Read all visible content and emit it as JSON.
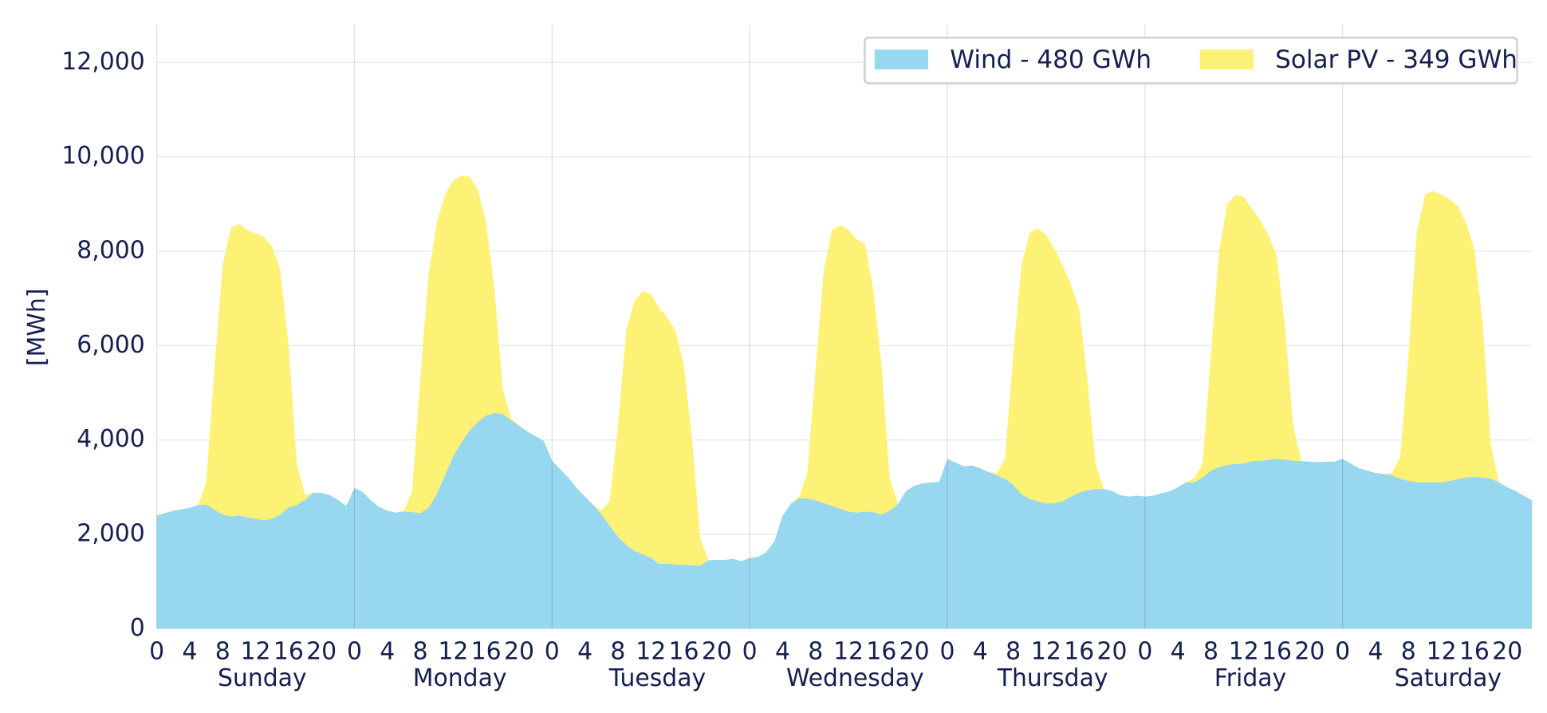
{
  "chart_data": {
    "type": "area",
    "stacked": true,
    "ylabel": "[MWh]",
    "ylim": [
      0,
      12800
    ],
    "yticks": [
      0,
      {
        "value": 2000,
        "label": "2,000"
      },
      {
        "value": 4000,
        "label": "4,000"
      },
      {
        "value": 6000,
        "label": "6,000"
      },
      {
        "value": 8000,
        "label": "8,000"
      },
      {
        "value": 10000,
        "label": "10,000"
      },
      {
        "value": 12000,
        "label": "12,000"
      }
    ],
    "xlim": [
      0,
      167
    ],
    "xticks": [
      {
        "value": 0,
        "label": "0"
      },
      {
        "value": 4,
        "label": "4"
      },
      {
        "value": 8,
        "label": "8"
      },
      {
        "value": 12,
        "label": "12"
      },
      {
        "value": 16,
        "label": "16"
      },
      {
        "value": 20,
        "label": "20"
      },
      {
        "value": 24,
        "label": "0"
      },
      {
        "value": 28,
        "label": "4"
      },
      {
        "value": 32,
        "label": "8"
      },
      {
        "value": 36,
        "label": "12"
      },
      {
        "value": 40,
        "label": "16"
      },
      {
        "value": 44,
        "label": "20"
      },
      {
        "value": 48,
        "label": "0"
      },
      {
        "value": 52,
        "label": "4"
      },
      {
        "value": 56,
        "label": "8"
      },
      {
        "value": 60,
        "label": "12"
      },
      {
        "value": 64,
        "label": "16"
      },
      {
        "value": 68,
        "label": "20"
      },
      {
        "value": 72,
        "label": "0"
      },
      {
        "value": 76,
        "label": "4"
      },
      {
        "value": 80,
        "label": "8"
      },
      {
        "value": 84,
        "label": "12"
      },
      {
        "value": 88,
        "label": "16"
      },
      {
        "value": 92,
        "label": "20"
      },
      {
        "value": 96,
        "label": "0"
      },
      {
        "value": 100,
        "label": "4"
      },
      {
        "value": 104,
        "label": "8"
      },
      {
        "value": 108,
        "label": "12"
      },
      {
        "value": 112,
        "label": "16"
      },
      {
        "value": 116,
        "label": "20"
      },
      {
        "value": 120,
        "label": "0"
      },
      {
        "value": 124,
        "label": "4"
      },
      {
        "value": 128,
        "label": "8"
      },
      {
        "value": 132,
        "label": "12"
      },
      {
        "value": 136,
        "label": "16"
      },
      {
        "value": 140,
        "label": "20"
      },
      {
        "value": 144,
        "label": "0"
      },
      {
        "value": 148,
        "label": "4"
      },
      {
        "value": 152,
        "label": "8"
      },
      {
        "value": 156,
        "label": "12"
      },
      {
        "value": 160,
        "label": "16"
      },
      {
        "value": 164,
        "label": "20"
      }
    ],
    "days": [
      "Sunday",
      "Monday",
      "Tuesday",
      "Wednesday",
      "Thursday",
      "Friday",
      "Saturday"
    ],
    "grid": true,
    "legend": "upper right",
    "series": [
      {
        "name": "Wind - 480 GWh",
        "color": "#97d7ef",
        "values": [
          2400,
          2450,
          2500,
          2530,
          2560,
          2620,
          2630,
          2520,
          2420,
          2380,
          2400,
          2360,
          2330,
          2300,
          2330,
          2420,
          2570,
          2620,
          2730,
          2880,
          2880,
          2830,
          2730,
          2600,
          2980,
          2900,
          2720,
          2580,
          2500,
          2460,
          2480,
          2470,
          2450,
          2560,
          2850,
          3250,
          3650,
          3950,
          4200,
          4380,
          4520,
          4570,
          4550,
          4420,
          4300,
          4180,
          4080,
          3980,
          3560,
          3380,
          3200,
          2980,
          2800,
          2620,
          2420,
          2180,
          1950,
          1780,
          1650,
          1580,
          1500,
          1370,
          1380,
          1360,
          1350,
          1340,
          1340,
          1450,
          1460,
          1460,
          1480,
          1430,
          1500,
          1520,
          1620,
          1850,
          2400,
          2650,
          2760,
          2760,
          2720,
          2660,
          2600,
          2540,
          2480,
          2460,
          2480,
          2470,
          2420,
          2500,
          2640,
          2920,
          3030,
          3080,
          3100,
          3110,
          3600,
          3520,
          3440,
          3460,
          3400,
          3320,
          3250,
          3180,
          3050,
          2850,
          2750,
          2700,
          2650,
          2660,
          2700,
          2800,
          2880,
          2930,
          2960,
          2960,
          2920,
          2830,
          2800,
          2820,
          2800,
          2820,
          2870,
          2910,
          3000,
          3100,
          3100,
          3200,
          3350,
          3420,
          3470,
          3490,
          3500,
          3550,
          3560,
          3580,
          3600,
          3580,
          3560,
          3550,
          3540,
          3530,
          3540,
          3540,
          3600,
          3500,
          3400,
          3350,
          3300,
          3280,
          3250,
          3180,
          3130,
          3100,
          3100,
          3100,
          3100,
          3130,
          3170,
          3200,
          3220,
          3200,
          3180,
          3100,
          3000,
          2920,
          2820,
          2720
        ]
      },
      {
        "name": "Solar PV - 349 GWh",
        "color": "#fdf176",
        "values": [
          0,
          0,
          0,
          0,
          0,
          0,
          470,
          2980,
          5280,
          6120,
          6180,
          6090,
          6050,
          6000,
          5770,
          5180,
          3430,
          880,
          100,
          0,
          0,
          0,
          0,
          0,
          0,
          0,
          0,
          0,
          0,
          0,
          30,
          430,
          2850,
          4940,
          5750,
          5950,
          5850,
          5650,
          5380,
          4920,
          4080,
          2630,
          550,
          50,
          0,
          0,
          0,
          0,
          0,
          0,
          0,
          0,
          0,
          0,
          80,
          520,
          2350,
          4520,
          5300,
          5570,
          5600,
          5430,
          5220,
          4940,
          4250,
          2660,
          560,
          0,
          0,
          0,
          0,
          0,
          0,
          0,
          0,
          0,
          0,
          0,
          40,
          540,
          2780,
          4940,
          5850,
          6010,
          5970,
          5790,
          5670,
          4730,
          3180,
          700,
          0,
          0,
          0,
          0,
          0,
          0,
          0,
          0,
          0,
          0,
          0,
          0,
          50,
          420,
          2750,
          4850,
          5650,
          5780,
          5700,
          5390,
          5000,
          4500,
          3920,
          2370,
          540,
          0,
          0,
          0,
          0,
          0,
          0,
          0,
          0,
          0,
          0,
          0,
          100,
          300,
          2450,
          4580,
          5530,
          5710,
          5650,
          5350,
          5090,
          4770,
          4300,
          2820,
          740,
          0,
          0,
          0,
          0,
          0,
          0,
          0,
          0,
          0,
          0,
          0,
          50,
          470,
          2670,
          5300,
          6100,
          6180,
          6100,
          5970,
          5780,
          5400,
          4830,
          3300,
          720,
          0,
          0,
          0,
          0,
          0
        ]
      }
    ]
  }
}
